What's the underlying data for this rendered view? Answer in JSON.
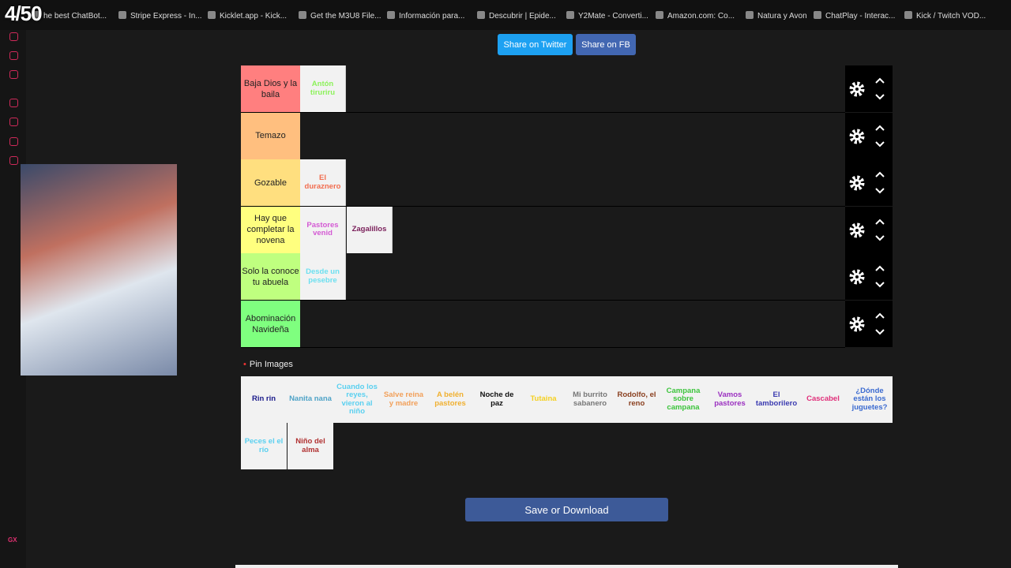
{
  "overlay": {
    "counter": "4/50"
  },
  "bookmarks": [
    "he best ChatBot...",
    "Stripe Express - In...",
    "Kicklet.app - Kick...",
    "Get the M3U8 File...",
    "Información para...",
    "Descubrir | Epide...",
    "Y2Mate - Converti...",
    "Amazon.com: Co...",
    "Natura y Avon",
    "ChatPlay - Interac...",
    "Kick / Twitch VOD..."
  ],
  "share": {
    "twitter": "Share on Twitter",
    "facebook": "Share on FB"
  },
  "tiers": [
    {
      "label": "Baja Dios y la baila",
      "color": "#ff7f7f",
      "items": [
        {
          "text": "Antón tiruriru",
          "color": "#8cf25a"
        }
      ]
    },
    {
      "label": "Temazo",
      "color": "#ffbf7f",
      "items": []
    },
    {
      "label": "Gozable",
      "color": "#ffdf7f",
      "items": [
        {
          "text": "El duraznero",
          "color": "#f26d4f"
        }
      ]
    },
    {
      "label": "Hay que completar la novena",
      "color": "#ffff7f",
      "items": [
        {
          "text": "Pastores venid",
          "color": "#d45ad4"
        },
        {
          "text": "Zagalillos",
          "color": "#7a1f5a"
        }
      ]
    },
    {
      "label": "Solo la conoce tu abuela",
      "color": "#bfff7f",
      "items": [
        {
          "text": "Desde un pesebre",
          "color": "#6de0f0"
        }
      ]
    },
    {
      "label": "Abominación Navideña",
      "color": "#7fff7f",
      "items": []
    }
  ],
  "pin": "Pin Images",
  "pool": [
    {
      "text": "Rin rin",
      "color": "#1a1a8a"
    },
    {
      "text": "Nanita nana",
      "color": "#4fa3c7"
    },
    {
      "text": "Cuando los reyes, vieron al niño",
      "color": "#5ad0f0"
    },
    {
      "text": "Salve reina y madre",
      "color": "#f2a05a"
    },
    {
      "text": "A belén pastores",
      "color": "#f0b030"
    },
    {
      "text": "Noche de paz",
      "color": "#111111"
    },
    {
      "text": "Tutaina",
      "color": "#f5d020"
    },
    {
      "text": "Mi burrito sabanero",
      "color": "#777777"
    },
    {
      "text": "Rodolfo, el reno",
      "color": "#8a4020"
    },
    {
      "text": "Campana sobre campana",
      "color": "#3cc43c"
    },
    {
      "text": "Vamos pastores",
      "color": "#9b30c0"
    },
    {
      "text": "El tamborilero",
      "color": "#3a3ab0"
    },
    {
      "text": "Cascabel",
      "color": "#e0307a"
    },
    {
      "text": "¿Dónde están los juguetes?",
      "color": "#3a6ad0"
    },
    {
      "text": "Peces el el río",
      "color": "#5ad0f0"
    },
    {
      "text": "Niño del alma",
      "color": "#b03030"
    }
  ],
  "save": "Save or Download",
  "sidebar": {
    "badge": "GX"
  }
}
